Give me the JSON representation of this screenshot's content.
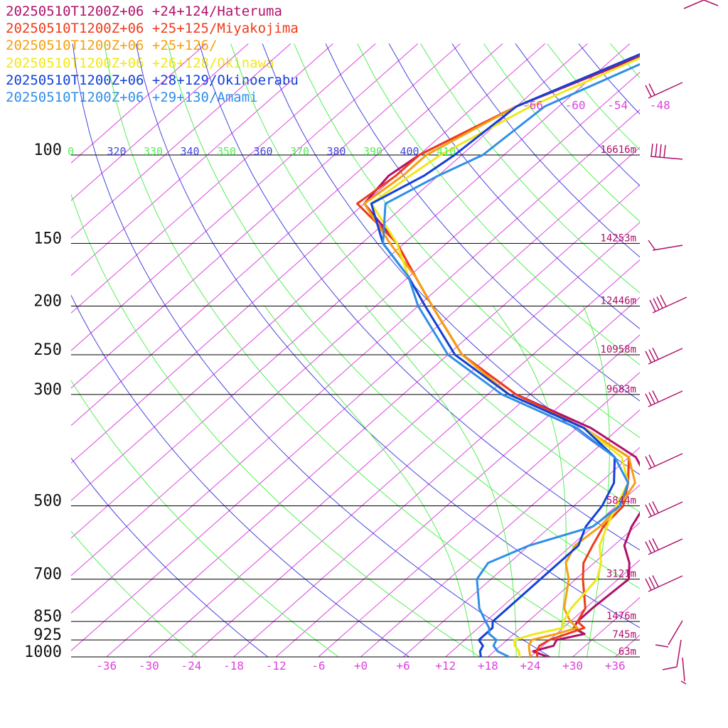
{
  "legend": [
    {
      "label": "20250510T1200Z+06 +24+124/Hateruma",
      "color": "#b0106a"
    },
    {
      "label": "20250510T1200Z+06 +25+125/Miyakojima",
      "color": "#f03a1a"
    },
    {
      "label": "20250510T1200Z+06 +25+126/",
      "color": "#f5a010"
    },
    {
      "label": "20250510T1200Z+06 +26+128/Okinawa",
      "color": "#f0e81a"
    },
    {
      "label": "20250510T1200Z+06 +28+129/Okinoerabu",
      "color": "#1240d8"
    },
    {
      "label": "20250510T1200Z+06 +29+130/Amami",
      "color": "#2f8ee8"
    }
  ],
  "chart_data": {
    "type": "line",
    "diagram": "skew-T log-p",
    "pressure_levels": [
      {
        "p": 100,
        "label": "100",
        "height": "16616m"
      },
      {
        "p": 150,
        "label": "150",
        "height": "14253m"
      },
      {
        "p": 200,
        "label": "200",
        "height": "12446m"
      },
      {
        "p": 250,
        "label": "250",
        "height": "10958m"
      },
      {
        "p": 300,
        "label": "300",
        "height": "9683m"
      },
      {
        "p": 500,
        "label": "500",
        "height": "5844m"
      },
      {
        "p": 700,
        "label": "700",
        "height": "3121m"
      },
      {
        "p": 850,
        "label": "850",
        "height": "1476m"
      },
      {
        "p": 925,
        "label": "925",
        "height": "745m"
      },
      {
        "p": 1000,
        "label": "1000",
        "height": "63m"
      }
    ],
    "x_ticks": [
      "-36",
      "-30",
      "-24",
      "-18",
      "-12",
      "-6",
      "+0",
      "+6",
      "+12",
      "+18",
      "+24",
      "+30",
      "+36"
    ],
    "x_tick_values": [
      -36,
      -30,
      -24,
      -18,
      -12,
      -6,
      0,
      6,
      12,
      18,
      24,
      30,
      36
    ],
    "isotherm_labels": [
      "-66",
      "-60",
      "-54",
      "-48"
    ],
    "isotherm_label_values": [
      -66,
      -60,
      -54,
      -48
    ],
    "theta_labels": [
      {
        "text": "0",
        "color": "#55ee55"
      },
      {
        "text": "320",
        "color": "#4444dd"
      },
      {
        "text": "330",
        "color": "#55ee55"
      },
      {
        "text": "340",
        "color": "#4444dd"
      },
      {
        "text": "350",
        "color": "#55ee55"
      },
      {
        "text": "360",
        "color": "#4444dd"
      },
      {
        "text": "370",
        "color": "#55ee55"
      },
      {
        "text": "380",
        "color": "#4444dd"
      },
      {
        "text": "390",
        "color": "#55ee55"
      },
      {
        "text": "400",
        "color": "#4444dd"
      },
      {
        "text": "410",
        "color": "#55ee55"
      }
    ],
    "p_range": [
      1000,
      60
    ],
    "t_range_at_1000": [
      -41,
      39.5
    ],
    "grid": true,
    "series": [
      {
        "name": "20250510T1200Z+06 +24+124/Hateruma",
        "color": "#b0106a",
        "t": [
          [
            1000,
            26.5
          ],
          [
            975,
            23.5
          ],
          [
            950,
            25.5
          ],
          [
            925,
            25
          ],
          [
            900,
            28
          ],
          [
            875,
            25.5
          ],
          [
            850,
            25
          ],
          [
            800,
            25
          ],
          [
            700,
            25.5
          ],
          [
            650,
            23
          ],
          [
            600,
            19.5
          ],
          [
            550,
            17.5
          ],
          [
            500,
            16
          ],
          [
            450,
            13
          ],
          [
            400,
            7
          ],
          [
            350,
            -4
          ],
          [
            300,
            -20
          ],
          [
            250,
            -34
          ],
          [
            200,
            -46
          ],
          [
            175,
            -53
          ],
          [
            150,
            -61
          ],
          [
            125,
            -72
          ],
          [
            110,
            -73
          ],
          [
            100,
            -72
          ],
          [
            80,
            -66
          ],
          [
            60,
            -54
          ]
        ]
      },
      {
        "name": "20250510T1200Z+06 +25+125/Miyakojima",
        "color": "#f03a1a",
        "t": [
          [
            1000,
            25
          ],
          [
            975,
            24
          ],
          [
            950,
            23.5
          ],
          [
            925,
            24
          ],
          [
            900,
            25.5
          ],
          [
            875,
            27
          ],
          [
            850,
            25
          ],
          [
            800,
            24
          ],
          [
            700,
            19
          ],
          [
            650,
            16.5
          ],
          [
            600,
            15
          ],
          [
            550,
            13.5
          ],
          [
            500,
            13
          ],
          [
            450,
            10
          ],
          [
            400,
            6
          ],
          [
            350,
            -5
          ],
          [
            300,
            -20
          ],
          [
            250,
            -34
          ],
          [
            200,
            -46
          ],
          [
            175,
            -53
          ],
          [
            150,
            -61
          ],
          [
            125,
            -73
          ],
          [
            110,
            -72
          ],
          [
            100,
            -72
          ],
          [
            80,
            -66
          ],
          [
            60,
            -55
          ]
        ]
      },
      {
        "name": "20250510T1200Z+06 +25+126/",
        "color": "#f5a010",
        "t": [
          [
            1000,
            24
          ],
          [
            975,
            23
          ],
          [
            950,
            22
          ],
          [
            925,
            21.5
          ],
          [
            900,
            24
          ],
          [
            875,
            26
          ],
          [
            850,
            24
          ],
          [
            800,
            21
          ],
          [
            700,
            17
          ],
          [
            650,
            14
          ],
          [
            600,
            12.5
          ],
          [
            550,
            13
          ],
          [
            500,
            12.5
          ],
          [
            450,
            11
          ],
          [
            400,
            6
          ],
          [
            350,
            -5
          ],
          [
            300,
            -21
          ],
          [
            250,
            -34
          ],
          [
            200,
            -46
          ],
          [
            175,
            -53
          ],
          [
            150,
            -62
          ],
          [
            125,
            -72
          ],
          [
            110,
            -71
          ],
          [
            100,
            -71
          ],
          [
            80,
            -66
          ],
          [
            60,
            -55
          ]
        ]
      },
      {
        "name": "20250510T1200Z+06 +26+128/Okinawa",
        "color": "#f0e81a",
        "t": [
          [
            1000,
            22.5
          ],
          [
            975,
            21.5
          ],
          [
            950,
            20
          ],
          [
            925,
            19
          ],
          [
            900,
            21
          ],
          [
            875,
            24
          ],
          [
            850,
            23
          ],
          [
            800,
            22
          ],
          [
            700,
            21
          ],
          [
            650,
            19
          ],
          [
            600,
            16
          ],
          [
            550,
            14
          ],
          [
            500,
            12
          ],
          [
            450,
            10
          ],
          [
            400,
            5
          ],
          [
            350,
            -5
          ],
          [
            300,
            -21
          ],
          [
            250,
            -35
          ],
          [
            200,
            -47
          ],
          [
            175,
            -54
          ],
          [
            150,
            -61
          ],
          [
            125,
            -71
          ],
          [
            110,
            -70
          ],
          [
            100,
            -69
          ],
          [
            80,
            -64
          ],
          [
            60,
            -54
          ]
        ]
      },
      {
        "name": "20250510T1200Z+06 +28+129/Okinoerabu",
        "color": "#1240d8",
        "t": [
          [
            1000,
            17
          ],
          [
            975,
            16
          ],
          [
            950,
            15.5
          ],
          [
            925,
            14
          ],
          [
            900,
            14
          ],
          [
            875,
            14
          ],
          [
            850,
            13
          ],
          [
            800,
            13
          ],
          [
            700,
            13
          ],
          [
            650,
            13
          ],
          [
            600,
            13
          ],
          [
            550,
            11
          ],
          [
            500,
            10
          ],
          [
            450,
            8
          ],
          [
            400,
            4
          ],
          [
            350,
            -5
          ],
          [
            300,
            -21
          ],
          [
            250,
            -35
          ],
          [
            200,
            -47
          ],
          [
            175,
            -54
          ],
          [
            150,
            -63
          ],
          [
            125,
            -71
          ],
          [
            110,
            -68
          ],
          [
            100,
            -67
          ],
          [
            80,
            -66
          ],
          [
            60,
            -55
          ]
        ]
      },
      {
        "name": "20250510T1200Z+06 +29+130/Amami",
        "color": "#2f8ee8",
        "t": [
          [
            1000,
            21
          ],
          [
            975,
            18.5
          ],
          [
            950,
            17
          ],
          [
            925,
            16.5
          ],
          [
            900,
            14.5
          ],
          [
            875,
            13.5
          ],
          [
            850,
            12
          ],
          [
            800,
            9
          ],
          [
            700,
            4
          ],
          [
            650,
            3
          ],
          [
            600,
            6
          ],
          [
            550,
            12
          ],
          [
            500,
            12.5
          ],
          [
            450,
            10
          ],
          [
            400,
            4
          ],
          [
            350,
            -6
          ],
          [
            300,
            -22
          ],
          [
            250,
            -36
          ],
          [
            200,
            -48
          ],
          [
            175,
            -54
          ],
          [
            150,
            -63
          ],
          [
            125,
            -69
          ],
          [
            110,
            -66
          ],
          [
            100,
            -63
          ],
          [
            80,
            -62
          ],
          [
            60,
            -52
          ]
        ]
      }
    ]
  }
}
